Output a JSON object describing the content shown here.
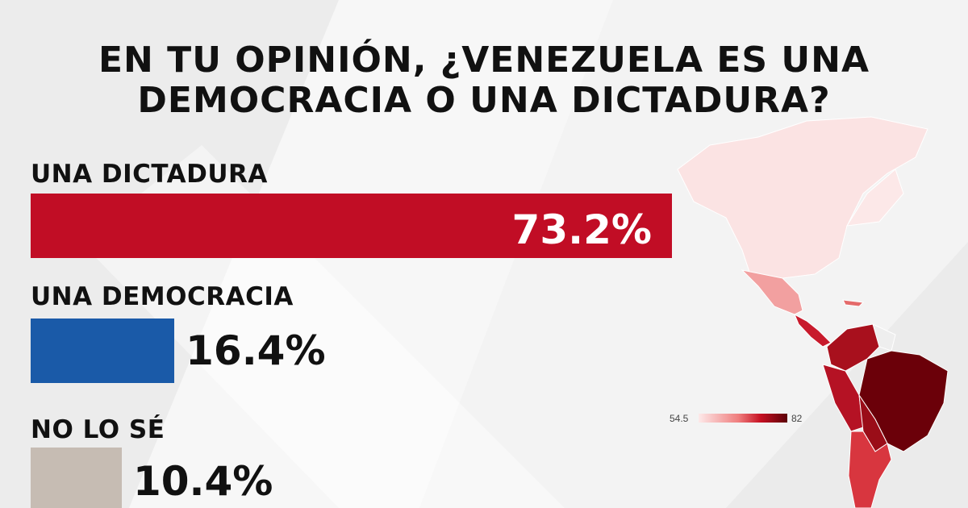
{
  "title": {
    "line1": "EN TU OPINIÓN, ¿VENEZUELA ES UNA",
    "line2": "DEMOCRACIA O UNA DICTADURA?"
  },
  "chart_data": {
    "type": "bar",
    "orientation": "horizontal",
    "categories": [
      "UNA DICTADURA",
      "UNA DEMOCRACIA",
      "NO LO SÉ"
    ],
    "values": [
      73.2,
      16.4,
      10.4
    ],
    "value_labels": [
      "73.2%",
      "16.4%",
      "10.4%"
    ],
    "colors": [
      "#c10d25",
      "#1a5aa8",
      "#c6bcb3"
    ],
    "xlim": [
      0,
      100
    ]
  },
  "map_legend": {
    "min": "54.5",
    "max": "82",
    "color_low": "#fde9e9",
    "color_high": "#5c0008"
  }
}
